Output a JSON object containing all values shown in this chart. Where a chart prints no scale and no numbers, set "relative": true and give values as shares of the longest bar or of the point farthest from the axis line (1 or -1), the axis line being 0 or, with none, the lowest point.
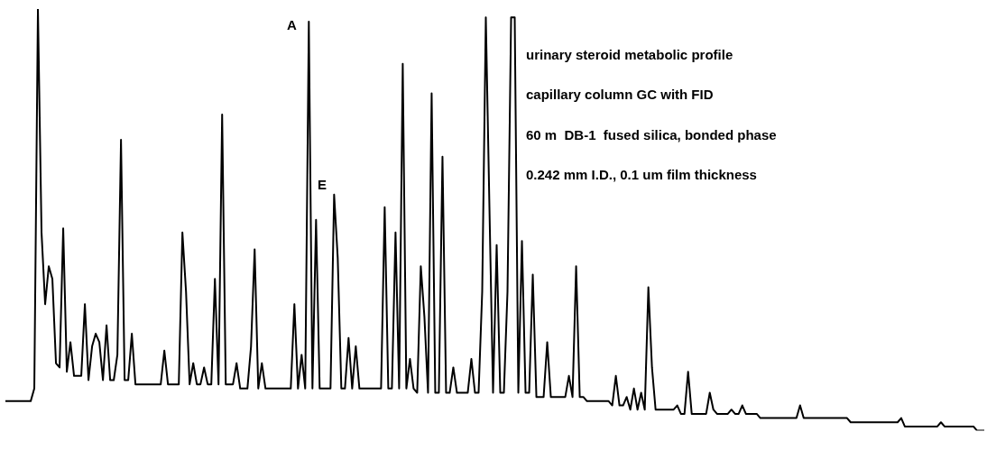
{
  "chart_data": {
    "type": "line",
    "relative": true,
    "color": "#000000",
    "legend": false,
    "grid": false,
    "marker": "none",
    "line_style": "solid",
    "annotations": [
      "urinary steroid metabolic profile",
      "capillary column GC with FID",
      "60 m  DB-1  fused silica, bonded phase",
      "0.242 mm I.D., 0.1 um film thickness",
      "A",
      "E"
    ],
    "categories": [
      null,
      null,
      null,
      null,
      null,
      null,
      null,
      null,
      null,
      null,
      null,
      null,
      null,
      null,
      null,
      null,
      null,
      null,
      null,
      null,
      null,
      null,
      null,
      null,
      null,
      null,
      null,
      null,
      null,
      null,
      null,
      null,
      null,
      null,
      null,
      null,
      null,
      null,
      null,
      null,
      null,
      null,
      null,
      null,
      null,
      null,
      null,
      null,
      null,
      null,
      null,
      null,
      null,
      null,
      null,
      null,
      null,
      null,
      null,
      null,
      null,
      null,
      null,
      null,
      null,
      null,
      null,
      null,
      null,
      null,
      null,
      null,
      null,
      null,
      null,
      null,
      null,
      null,
      null,
      null,
      null,
      null,
      null,
      null,
      null,
      null,
      null,
      null,
      null,
      null,
      null,
      null,
      null,
      null,
      null,
      null,
      null,
      null,
      null,
      null,
      null,
      null,
      null,
      null,
      null,
      null,
      null,
      null,
      null,
      null,
      null,
      null,
      null,
      null,
      null,
      null,
      null,
      null,
      null,
      null,
      null,
      null,
      null,
      null,
      null,
      null,
      null,
      null,
      null,
      null,
      null,
      null,
      null,
      null,
      null,
      null,
      null,
      null,
      null,
      null,
      null,
      null,
      null,
      null,
      null,
      null,
      null,
      null,
      null,
      null,
      null,
      null,
      null,
      null,
      null,
      null,
      null,
      null,
      null,
      null,
      null,
      null,
      null,
      null,
      null,
      null,
      null,
      null,
      null,
      null,
      null,
      null,
      null,
      null,
      null,
      null,
      null,
      null,
      null,
      null,
      null,
      null,
      null,
      null,
      null,
      null,
      null,
      null,
      null,
      null,
      null,
      null,
      null,
      null,
      null,
      null,
      null,
      null,
      null,
      null,
      null,
      null,
      null,
      null,
      null,
      null,
      null,
      null,
      null,
      null,
      null,
      null,
      null,
      null,
      null,
      null,
      null,
      null,
      null,
      null,
      null,
      null,
      null,
      null,
      null,
      null,
      null,
      null,
      null,
      null,
      null,
      null,
      null,
      null,
      null,
      null,
      null,
      null,
      null,
      null,
      null,
      null,
      null,
      null,
      null,
      null,
      null,
      null,
      null,
      null,
      null,
      null,
      null,
      null,
      null,
      null,
      null,
      null,
      null,
      null,
      null,
      null,
      null,
      null,
      null,
      null,
      null,
      null,
      null,
      null,
      null,
      null
    ],
    "values": [
      0.07,
      0.07,
      0.07,
      0.07,
      0.07,
      0.07,
      0.07,
      0.07,
      0.1,
      1,
      0.47,
      0.3,
      0.39,
      0.36,
      0.16,
      0.15,
      0.48,
      0.14,
      0.21,
      0.13,
      0.13,
      0.13,
      0.3,
      0.12,
      0.2,
      0.23,
      0.21,
      0.12,
      0.25,
      0.12,
      0.12,
      0.18,
      0.69,
      0.12,
      0.12,
      0.23,
      0.11,
      0.11,
      0.11,
      0.11,
      0.11,
      0.11,
      0.11,
      0.11,
      0.19,
      0.11,
      0.11,
      0.11,
      0.11,
      0.47,
      0.33,
      0.11,
      0.16,
      0.11,
      0.11,
      0.15,
      0.11,
      0.11,
      0.36,
      0.11,
      0.75,
      0.11,
      0.11,
      0.11,
      0.16,
      0.1,
      0.1,
      0.1,
      0.2,
      0.43,
      0.1,
      0.16,
      0.1,
      0.1,
      0.1,
      0.1,
      0.1,
      0.1,
      0.1,
      0.1,
      0.3,
      0.1,
      0.18,
      0.1,
      0.97,
      0.1,
      0.5,
      0.1,
      0.1,
      0.1,
      0.1,
      0.56,
      0.41,
      0.1,
      0.1,
      0.22,
      0.1,
      0.2,
      0.1,
      0.1,
      0.1,
      0.1,
      0.1,
      0.1,
      0.1,
      0.53,
      0.1,
      0.1,
      0.47,
      0.1,
      0.87,
      0.1,
      0.17,
      0.1,
      0.09,
      0.39,
      0.27,
      0.09,
      0.8,
      0.09,
      0.09,
      0.65,
      0.09,
      0.09,
      0.15,
      0.09,
      0.09,
      0.09,
      0.09,
      0.17,
      0.09,
      0.09,
      0.33,
      0.98,
      0.53,
      0.09,
      0.44,
      0.09,
      0.09,
      0.33,
      0.98,
      0.98,
      0.09,
      0.45,
      0.09,
      0.09,
      0.37,
      0.08,
      0.08,
      0.08,
      0.21,
      0.08,
      0.08,
      0.08,
      0.08,
      0.08,
      0.13,
      0.08,
      0.39,
      0.08,
      0.08,
      0.07,
      0.07,
      0.07,
      0.07,
      0.07,
      0.07,
      0.07,
      0.06,
      0.13,
      0.06,
      0.06,
      0.08,
      0.05,
      0.1,
      0.05,
      0.09,
      0.05,
      0.34,
      0.15,
      0.05,
      0.05,
      0.05,
      0.05,
      0.05,
      0.05,
      0.06,
      0.04,
      0.04,
      0.14,
      0.04,
      0.04,
      0.04,
      0.04,
      0.04,
      0.09,
      0.05,
      0.04,
      0.04,
      0.04,
      0.04,
      0.05,
      0.04,
      0.04,
      0.06,
      0.04,
      0.04,
      0.04,
      0.04,
      0.03,
      0.03,
      0.03,
      0.03,
      0.03,
      0.03,
      0.03,
      0.03,
      0.03,
      0.03,
      0.03,
      0.06,
      0.03,
      0.03,
      0.03,
      0.03,
      0.03,
      0.03,
      0.03,
      0.03,
      0.03,
      0.03,
      0.03,
      0.03,
      0.03,
      0.02,
      0.02,
      0.02,
      0.02,
      0.02,
      0.02,
      0.02,
      0.02,
      0.02,
      0.02,
      0.02,
      0.02,
      0.02,
      0.02,
      0.03,
      0.01,
      0.01,
      0.01,
      0.01,
      0.01,
      0.01,
      0.01,
      0.01,
      0.01,
      0.01,
      0.02,
      0.01,
      0.01,
      0.01,
      0.01,
      0.01,
      0.01,
      0.01,
      0.01,
      0.01,
      0,
      0,
      0
    ]
  }
}
